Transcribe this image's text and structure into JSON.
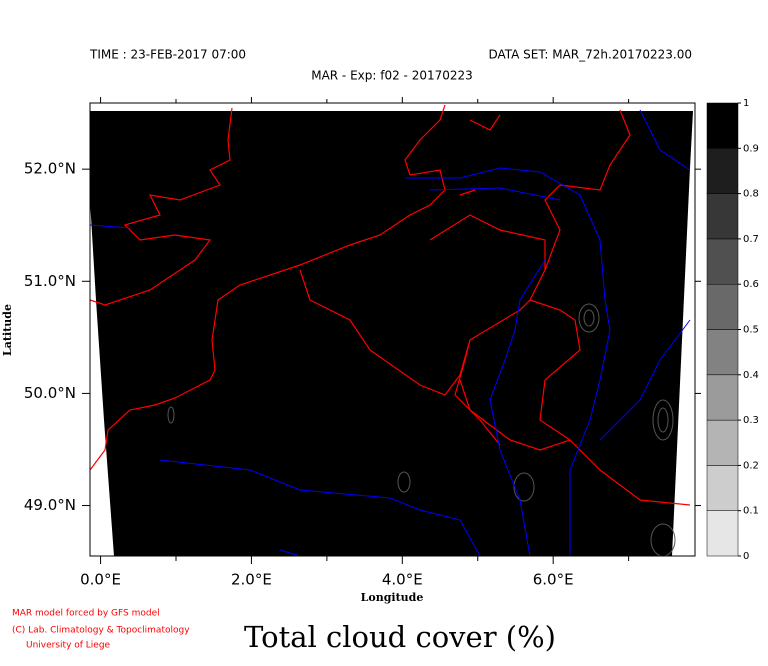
{
  "header": {
    "time": "TIME : 23-FEB-2017 07:00",
    "dataset": "DATA SET: MAR_72h.20170223.00",
    "subtitle": "MAR - Exp: f02 - 20170223"
  },
  "map": {
    "xlabel": "Longitude",
    "ylabel": "Latitude",
    "xlim": [
      -0.14,
      7.88
    ],
    "ylim": [
      48.55,
      52.59
    ],
    "xticks": [
      {
        "value": 0,
        "label": "0.0°E"
      },
      {
        "value": 2,
        "label": "2.0°E"
      },
      {
        "value": 4,
        "label": "4.0°E"
      },
      {
        "value": 6,
        "label": "6.0°E"
      }
    ],
    "xminorticks": [
      1,
      3,
      5,
      7
    ],
    "yticks": [
      {
        "value": 49,
        "label": "49.0°N"
      },
      {
        "value": 50,
        "label": "50.0°N"
      },
      {
        "value": 51,
        "label": "51.0°N"
      },
      {
        "value": 52,
        "label": "52.0°N"
      }
    ]
  },
  "colorbar": {
    "ticks": [
      0,
      0.1,
      0.2,
      0.3,
      0.4,
      0.5,
      0.6,
      0.7,
      0.8,
      0.9,
      1
    ],
    "colors": [
      "#ffffff",
      "#e6e6e6",
      "#cdcdcd",
      "#b4b4b4",
      "#9b9b9b",
      "#828282",
      "#696969",
      "#505050",
      "#373737",
      "#1e1e1e",
      "#000000"
    ]
  },
  "footer": {
    "credits": [
      "MAR model forced by GFS model",
      "(C) Lab. Climatology & Topoclimatology",
      "University of Liege"
    ],
    "title": "Total cloud cover (%)"
  }
}
